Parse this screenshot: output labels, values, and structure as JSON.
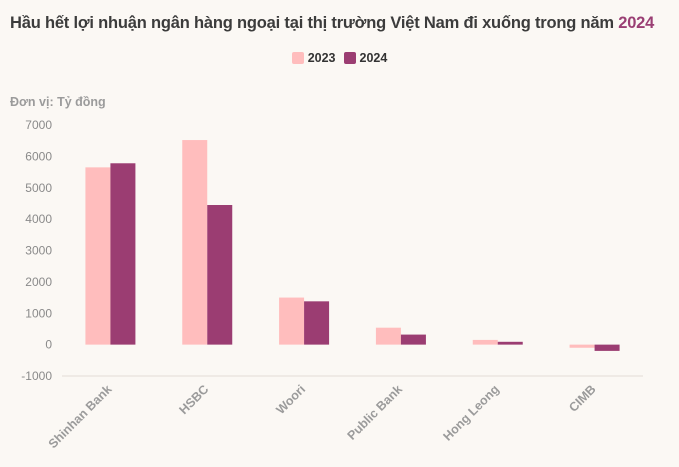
{
  "title_main": "Hầu hết lợi nhuận ngân hàng ngoại tại thị trường Việt Nam đi xuống trong năm",
  "title_highlight": "2024",
  "unit_label": "Đơn vị: Tỷ đồng",
  "colors": {
    "series_2023": "#ffbdbd",
    "series_2024": "#9b3d72",
    "highlight": "#9a3f74"
  },
  "chart_data": {
    "type": "bar",
    "categories": [
      "Shinhan Bank",
      "HSBC",
      "Woori",
      "Public Bank",
      "Hong Leong",
      "CIMB"
    ],
    "series": [
      {
        "name": "2023",
        "values": [
          5650,
          6520,
          1500,
          540,
          150,
          -100
        ]
      },
      {
        "name": "2024",
        "values": [
          5780,
          4450,
          1380,
          320,
          90,
          -200
        ]
      }
    ],
    "yticks": [
      "7000",
      "6000",
      "5000",
      "4000",
      "3000",
      "2000",
      "1000",
      "0",
      "-1000"
    ],
    "ylim": [
      -1000,
      7000
    ],
    "ylabel": "Đơn vị: Tỷ đồng",
    "xlabel": "",
    "legend": "top-center",
    "grid": false
  }
}
